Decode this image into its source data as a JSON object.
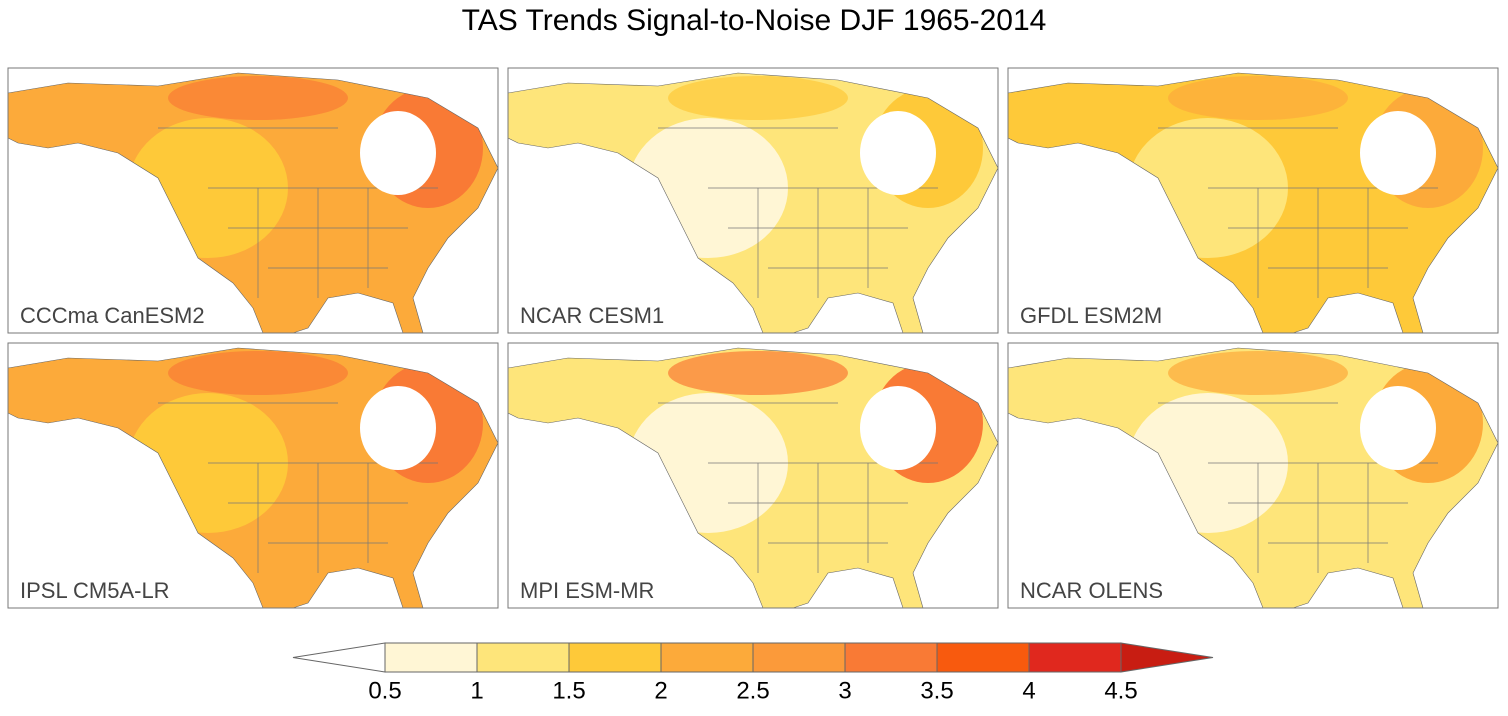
{
  "title": "TAS Trends Signal-to-Noise DJF 1965-2014",
  "panels": [
    {
      "label": "CCCma CanESM2",
      "fill": "#fcaa3a",
      "accent": "#f97a35",
      "light": "#fec939"
    },
    {
      "label": "NCAR CESM1",
      "fill": "#fee57a",
      "accent": "#fec939",
      "light": "#fff6d5"
    },
    {
      "label": "GFDL ESM2M",
      "fill": "#fec939",
      "accent": "#fcaa3a",
      "light": "#fee57a"
    },
    {
      "label": "IPSL CM5A-LR",
      "fill": "#fcaa3a",
      "accent": "#f97a35",
      "light": "#fec939"
    },
    {
      "label": "MPI ESM-MR",
      "fill": "#fee57a",
      "accent": "#f97a35",
      "light": "#fff6d5"
    },
    {
      "label": "NCAR OLENS",
      "fill": "#fee57a",
      "accent": "#fcaa3a",
      "light": "#fff6d5"
    }
  ],
  "colorbar": {
    "levels": [
      0.5,
      1,
      1.5,
      2,
      2.5,
      3,
      3.5,
      4,
      4.5
    ],
    "colors": [
      "#ffffff",
      "#fff6d5",
      "#fee57a",
      "#fec939",
      "#fcaa3a",
      "#fb9a3a",
      "#f97a35",
      "#f85a0e",
      "#e0281e",
      "#c81d12"
    ]
  }
}
